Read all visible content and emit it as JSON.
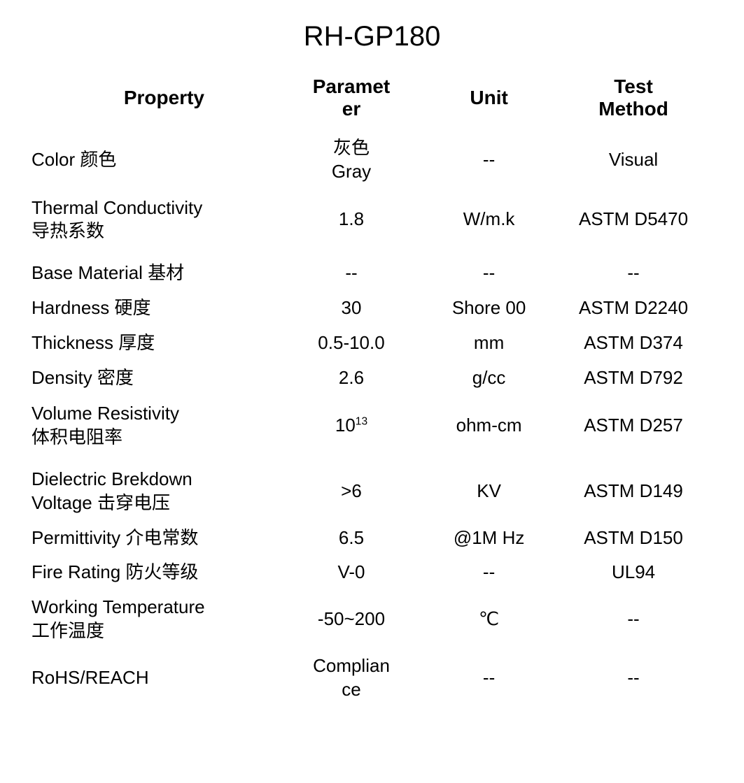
{
  "title": "RH-GP180",
  "table": {
    "headers": {
      "property": "Property",
      "parameter": "Paramet\ner",
      "unit": "Unit",
      "method": "Test\nMethod"
    },
    "rows": [
      {
        "property": "Color 颜色",
        "parameter": "灰色\nGray",
        "unit": "--",
        "method": "Visual",
        "property_multiline": false,
        "parameter_multiline": true
      },
      {
        "property": "Thermal Conductivity\n导热系数",
        "parameter": "1.8",
        "unit": "W/m.k",
        "method": "ASTM D5470",
        "property_multiline": true,
        "tall": true
      },
      {
        "property": "Base Material 基材",
        "parameter": "--",
        "unit": "--",
        "method": "--"
      },
      {
        "property": "Hardness 硬度",
        "parameter": "30",
        "unit": "Shore 00",
        "method": "ASTM D2240"
      },
      {
        "property": "Thickness 厚度",
        "parameter": "0.5-10.0",
        "unit": "mm",
        "method": "ASTM D374"
      },
      {
        "property": "Density 密度",
        "parameter": "2.6",
        "unit": "g/cc",
        "method": "ASTM D792"
      },
      {
        "property": "Volume Resistivity\n体积电阻率",
        "parameter_html": "10<sup>13</sup>",
        "unit": "ohm-cm",
        "method": "ASTM D257",
        "property_multiline": true,
        "tall": true
      },
      {
        "property": "Dielectric Brekdown\nVoltage 击穿电压",
        "parameter": ">6",
        "unit": "KV",
        "method": "ASTM D149",
        "property_multiline": true
      },
      {
        "property": "Permittivity 介电常数",
        "parameter": "6.5",
        "unit": "@1M Hz",
        "method": "ASTM D150"
      },
      {
        "property": "Fire Rating  防火等级",
        "parameter": "V-0",
        "unit": "--",
        "method": "UL94"
      },
      {
        "property": "Working Temperature\n工作温度",
        "parameter": "-50~200",
        "unit": "℃",
        "method": "--",
        "property_multiline": true
      },
      {
        "property": "RoHS/REACH",
        "parameter": "Complian\nce",
        "unit": "--",
        "method": "--",
        "parameter_multiline": true
      }
    ]
  },
  "styling": {
    "background_color": "#ffffff",
    "text_color": "#000000",
    "title_fontsize": 40,
    "header_fontsize": 28,
    "body_fontsize": 26,
    "font_family": "Arial, Microsoft YaHei, sans-serif",
    "column_widths_pct": [
      36,
      22,
      18,
      24
    ],
    "column_alignments": [
      "left",
      "center",
      "center",
      "center"
    ]
  }
}
